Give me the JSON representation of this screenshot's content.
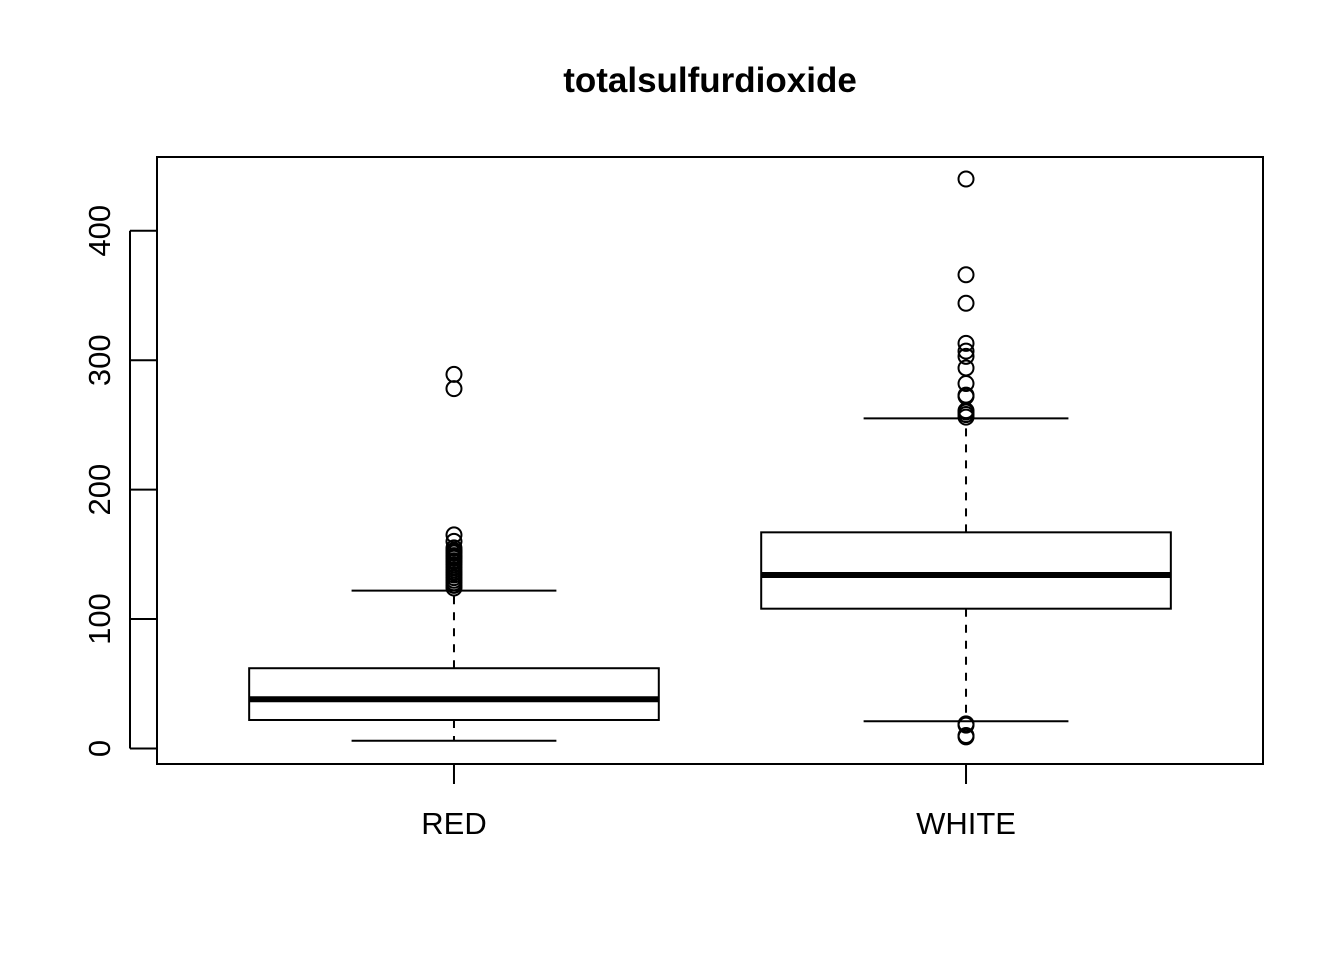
{
  "chart_data": {
    "type": "boxplot",
    "title": "totalsulfurdioxide",
    "xlabel": "",
    "ylabel": "",
    "categories": [
      "RED",
      "WHITE"
    ],
    "ylim": [
      -12,
      457
    ],
    "yticks": [
      0,
      100,
      200,
      300,
      400
    ],
    "grid": false,
    "legend": "none",
    "boxes": [
      {
        "category": "RED",
        "whisker_low": 6,
        "q1": 22,
        "median": 38,
        "q3": 62,
        "whisker_high": 122,
        "outliers": [
          124,
          126,
          128,
          130,
          132,
          134,
          136,
          138,
          140,
          142,
          144,
          145,
          147,
          148,
          149,
          151,
          152,
          153,
          155,
          160,
          165,
          278,
          289
        ]
      },
      {
        "category": "WHITE",
        "whisker_low": 21,
        "q1": 108,
        "median": 134,
        "q3": 167,
        "whisker_high": 255,
        "outliers": [
          9,
          10,
          18,
          19,
          256,
          258,
          260,
          261,
          272,
          273,
          282,
          294,
          303,
          307,
          313,
          344,
          366,
          440
        ]
      }
    ]
  }
}
